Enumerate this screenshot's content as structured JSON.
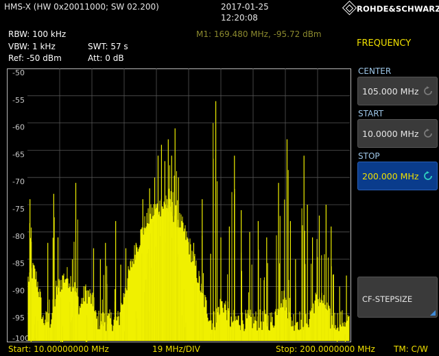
{
  "header": {
    "device": "HMS-X (HW 0x20011000; SW 02.200)",
    "date": "2017-01-25",
    "time": "12:20:08",
    "brand": "ROHDE&SCHWARZ"
  },
  "marker": "M1: 169.480 MHz, -95.72 dBm",
  "settings": {
    "rbw": "RBW: 100 kHz",
    "vbw": "VBW: 1 kHz",
    "swt": "SWT: 57 s",
    "ref": "Ref: -50 dBm",
    "att": "Att: 0 dB"
  },
  "panel": {
    "title": "FREQUENCY",
    "center_label": "CENTER",
    "center_value": "105.000 MHz",
    "start_label": "START",
    "start_value": "10.0000 MHz",
    "stop_label": "STOP",
    "stop_value": "200.000 MHz",
    "stepsize_label": "CF-STEPSIZE"
  },
  "footer": {
    "start": "Start: 10.00000000 MHz",
    "div": "19 MHz/DIV",
    "stop": "Stop: 200.0000000 MHz",
    "mode": "TM: C/W"
  },
  "colors": {
    "trace": "#f0f000",
    "accent": "#f0e000",
    "selected": "#0a3c8c"
  },
  "chart_data": {
    "type": "line",
    "x_range_mhz": [
      10,
      200
    ],
    "ylim": [
      -100,
      -50
    ],
    "y_ticks": [
      "-50",
      "-55",
      "-60",
      "-65",
      "-70",
      "-75",
      "-80",
      "-85",
      "-90",
      "-95",
      "-100"
    ],
    "grid": true,
    "peaks": [
      {
        "mhz": 11.5,
        "dbm": -74
      },
      {
        "mhz": 13.6,
        "dbm": -86
      },
      {
        "mhz": 16.5,
        "dbm": -91
      },
      {
        "mhz": 22,
        "dbm": -82
      },
      {
        "mhz": 25.5,
        "dbm": -73
      },
      {
        "mhz": 28,
        "dbm": -81
      },
      {
        "mhz": 31,
        "dbm": -88
      },
      {
        "mhz": 36.5,
        "dbm": -85
      },
      {
        "mhz": 38.5,
        "dbm": -71
      },
      {
        "mhz": 44,
        "dbm": -90
      },
      {
        "mhz": 49,
        "dbm": -83
      },
      {
        "mhz": 53,
        "dbm": -85
      },
      {
        "mhz": 56,
        "dbm": -82
      },
      {
        "mhz": 62,
        "dbm": -78
      },
      {
        "mhz": 65,
        "dbm": -86
      },
      {
        "mhz": 68,
        "dbm": -83
      },
      {
        "mhz": 74,
        "dbm": -82
      },
      {
        "mhz": 78,
        "dbm": -74
      },
      {
        "mhz": 80,
        "dbm": -79
      },
      {
        "mhz": 82,
        "dbm": -72
      },
      {
        "mhz": 85,
        "dbm": -70
      },
      {
        "mhz": 87,
        "dbm": -66
      },
      {
        "mhz": 89,
        "dbm": -64
      },
      {
        "mhz": 91,
        "dbm": -67
      },
      {
        "mhz": 93,
        "dbm": -63
      },
      {
        "mhz": 95,
        "dbm": -66
      },
      {
        "mhz": 97,
        "dbm": -61
      },
      {
        "mhz": 99,
        "dbm": -70
      },
      {
        "mhz": 101,
        "dbm": -82
      },
      {
        "mhz": 104,
        "dbm": -84
      },
      {
        "mhz": 108,
        "dbm": -82
      },
      {
        "mhz": 113,
        "dbm": -74
      },
      {
        "mhz": 118,
        "dbm": -84
      },
      {
        "mhz": 121,
        "dbm": -56
      },
      {
        "mhz": 124,
        "dbm": -81
      },
      {
        "mhz": 129,
        "dbm": -79
      },
      {
        "mhz": 132,
        "dbm": -66
      },
      {
        "mhz": 136,
        "dbm": -76
      },
      {
        "mhz": 141,
        "dbm": -80
      },
      {
        "mhz": 146,
        "dbm": -78
      },
      {
        "mhz": 151,
        "dbm": -81
      },
      {
        "mhz": 158,
        "dbm": -71
      },
      {
        "mhz": 163,
        "dbm": -63
      },
      {
        "mhz": 165,
        "dbm": -78
      },
      {
        "mhz": 168,
        "dbm": -85
      },
      {
        "mhz": 173,
        "dbm": -66
      },
      {
        "mhz": 175,
        "dbm": -75
      },
      {
        "mhz": 178,
        "dbm": -81
      },
      {
        "mhz": 182,
        "dbm": -77
      },
      {
        "mhz": 186,
        "dbm": -75
      },
      {
        "mhz": 189,
        "dbm": -79
      },
      {
        "mhz": 194,
        "dbm": -90
      },
      {
        "mhz": 198,
        "dbm": -88
      }
    ],
    "noise_bumps": [
      {
        "mhz": 13,
        "dbm": -88,
        "width_mhz": 5
      },
      {
        "mhz": 33,
        "dbm": -89,
        "width_mhz": 8
      },
      {
        "mhz": 45,
        "dbm": -92,
        "width_mhz": 6
      },
      {
        "mhz": 90,
        "dbm": -76,
        "width_mhz": 14
      },
      {
        "mhz": 108,
        "dbm": -91,
        "width_mhz": 10
      },
      {
        "mhz": 125,
        "dbm": -94,
        "width_mhz": 6
      },
      {
        "mhz": 160,
        "dbm": -93,
        "width_mhz": 6
      },
      {
        "mhz": 182,
        "dbm": -93,
        "width_mhz": 8
      }
    ],
    "noise_floor_dbm": -97
  }
}
